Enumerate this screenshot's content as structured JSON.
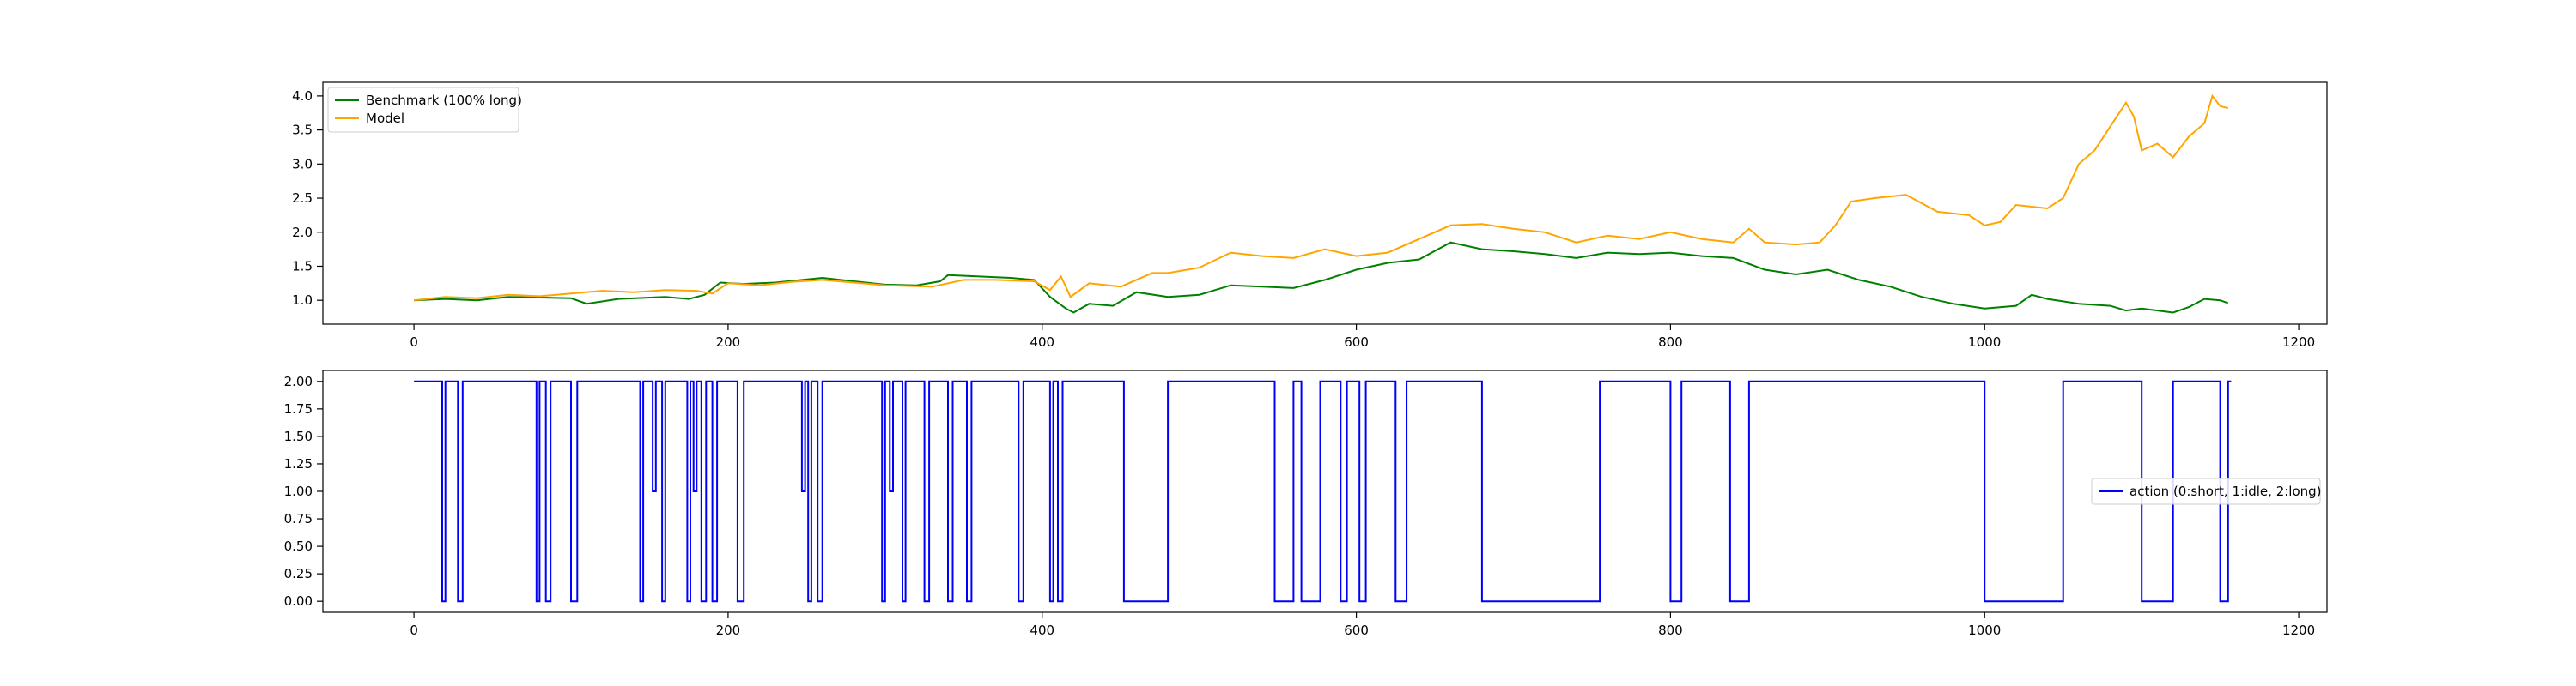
{
  "chart_data": [
    {
      "type": "line",
      "title": "",
      "xlabel": "",
      "ylabel": "",
      "xlim": [
        -58,
        1218
      ],
      "ylim": [
        0.65,
        4.2
      ],
      "xticks": [
        0,
        200,
        400,
        600,
        800,
        1000,
        1200
      ],
      "yticks": [
        1.0,
        1.5,
        2.0,
        2.5,
        3.0,
        3.5,
        4.0
      ],
      "ytick_format": 1,
      "grid": false,
      "legend_position": "upper-left",
      "series": [
        {
          "name": "Benchmark (100% long)",
          "color": "#008000",
          "points": [
            [
              0,
              1.0
            ],
            [
              20,
              1.02
            ],
            [
              40,
              1.0
            ],
            [
              60,
              1.05
            ],
            [
              80,
              1.04
            ],
            [
              100,
              1.03
            ],
            [
              110,
              0.95
            ],
            [
              130,
              1.02
            ],
            [
              160,
              1.05
            ],
            [
              175,
              1.02
            ],
            [
              185,
              1.08
            ],
            [
              195,
              1.26
            ],
            [
              210,
              1.24
            ],
            [
              230,
              1.26
            ],
            [
              260,
              1.33
            ],
            [
              280,
              1.28
            ],
            [
              300,
              1.23
            ],
            [
              320,
              1.22
            ],
            [
              335,
              1.28
            ],
            [
              340,
              1.37
            ],
            [
              360,
              1.35
            ],
            [
              380,
              1.33
            ],
            [
              395,
              1.3
            ],
            [
              405,
              1.05
            ],
            [
              415,
              0.88
            ],
            [
              420,
              0.82
            ],
            [
              430,
              0.95
            ],
            [
              445,
              0.92
            ],
            [
              460,
              1.12
            ],
            [
              480,
              1.05
            ],
            [
              500,
              1.08
            ],
            [
              520,
              1.22
            ],
            [
              540,
              1.2
            ],
            [
              560,
              1.18
            ],
            [
              580,
              1.3
            ],
            [
              600,
              1.45
            ],
            [
              620,
              1.55
            ],
            [
              640,
              1.6
            ],
            [
              660,
              1.85
            ],
            [
              680,
              1.75
            ],
            [
              700,
              1.72
            ],
            [
              720,
              1.68
            ],
            [
              740,
              1.62
            ],
            [
              760,
              1.7
            ],
            [
              780,
              1.68
            ],
            [
              800,
              1.7
            ],
            [
              820,
              1.65
            ],
            [
              840,
              1.62
            ],
            [
              860,
              1.45
            ],
            [
              880,
              1.38
            ],
            [
              900,
              1.45
            ],
            [
              920,
              1.3
            ],
            [
              940,
              1.2
            ],
            [
              960,
              1.05
            ],
            [
              980,
              0.95
            ],
            [
              1000,
              0.88
            ],
            [
              1020,
              0.92
            ],
            [
              1030,
              1.08
            ],
            [
              1040,
              1.02
            ],
            [
              1060,
              0.95
            ],
            [
              1080,
              0.92
            ],
            [
              1090,
              0.85
            ],
            [
              1100,
              0.88
            ],
            [
              1120,
              0.82
            ],
            [
              1130,
              0.9
            ],
            [
              1140,
              1.02
            ],
            [
              1150,
              1.0
            ],
            [
              1155,
              0.96
            ]
          ]
        },
        {
          "name": "Model",
          "color": "#ffa500",
          "points": [
            [
              0,
              1.0
            ],
            [
              20,
              1.05
            ],
            [
              40,
              1.03
            ],
            [
              60,
              1.08
            ],
            [
              80,
              1.06
            ],
            [
              100,
              1.1
            ],
            [
              120,
              1.14
            ],
            [
              140,
              1.12
            ],
            [
              160,
              1.15
            ],
            [
              180,
              1.14
            ],
            [
              190,
              1.1
            ],
            [
              200,
              1.25
            ],
            [
              220,
              1.22
            ],
            [
              240,
              1.27
            ],
            [
              260,
              1.3
            ],
            [
              280,
              1.26
            ],
            [
              300,
              1.22
            ],
            [
              330,
              1.2
            ],
            [
              350,
              1.3
            ],
            [
              370,
              1.3
            ],
            [
              395,
              1.28
            ],
            [
              405,
              1.15
            ],
            [
              412,
              1.35
            ],
            [
              418,
              1.05
            ],
            [
              430,
              1.25
            ],
            [
              450,
              1.2
            ],
            [
              470,
              1.4
            ],
            [
              480,
              1.4
            ],
            [
              500,
              1.48
            ],
            [
              520,
              1.7
            ],
            [
              540,
              1.65
            ],
            [
              560,
              1.62
            ],
            [
              580,
              1.75
            ],
            [
              600,
              1.65
            ],
            [
              620,
              1.7
            ],
            [
              640,
              1.9
            ],
            [
              660,
              2.1
            ],
            [
              680,
              2.12
            ],
            [
              700,
              2.05
            ],
            [
              720,
              2.0
            ],
            [
              740,
              1.85
            ],
            [
              760,
              1.95
            ],
            [
              780,
              1.9
            ],
            [
              800,
              2.0
            ],
            [
              820,
              1.9
            ],
            [
              840,
              1.85
            ],
            [
              850,
              2.05
            ],
            [
              860,
              1.85
            ],
            [
              880,
              1.82
            ],
            [
              895,
              1.85
            ],
            [
              905,
              2.1
            ],
            [
              915,
              2.45
            ],
            [
              930,
              2.5
            ],
            [
              950,
              2.55
            ],
            [
              970,
              2.3
            ],
            [
              990,
              2.25
            ],
            [
              1000,
              2.1
            ],
            [
              1010,
              2.15
            ],
            [
              1020,
              2.4
            ],
            [
              1040,
              2.35
            ],
            [
              1050,
              2.5
            ],
            [
              1060,
              3.0
            ],
            [
              1070,
              3.2
            ],
            [
              1080,
              3.55
            ],
            [
              1090,
              3.9
            ],
            [
              1095,
              3.7
            ],
            [
              1100,
              3.2
            ],
            [
              1110,
              3.3
            ],
            [
              1120,
              3.1
            ],
            [
              1130,
              3.4
            ],
            [
              1140,
              3.6
            ],
            [
              1145,
              4.0
            ],
            [
              1150,
              3.85
            ],
            [
              1155,
              3.82
            ]
          ]
        }
      ]
    },
    {
      "type": "line",
      "title": "",
      "xlabel": "",
      "ylabel": "",
      "xlim": [
        -58,
        1218
      ],
      "ylim": [
        -0.1,
        2.1
      ],
      "xticks": [
        0,
        200,
        400,
        600,
        800,
        1000,
        1200
      ],
      "yticks": [
        0.0,
        0.25,
        0.5,
        0.75,
        1.0,
        1.25,
        1.5,
        1.75,
        2.0
      ],
      "ytick_format": 2,
      "grid": false,
      "legend_position": "center-right",
      "series": [
        {
          "name": "action (0:short, 1:idle, 2:long)",
          "color": "#0000ff",
          "step_segments": [
            [
              0,
              18,
              2
            ],
            [
              18,
              20,
              0
            ],
            [
              20,
              28,
              2
            ],
            [
              28,
              31,
              0
            ],
            [
              31,
              78,
              2
            ],
            [
              78,
              80,
              0
            ],
            [
              80,
              84,
              2
            ],
            [
              84,
              87,
              0
            ],
            [
              87,
              100,
              2
            ],
            [
              100,
              104,
              0
            ],
            [
              104,
              144,
              2
            ],
            [
              144,
              146,
              0
            ],
            [
              146,
              152,
              2
            ],
            [
              152,
              154,
              1
            ],
            [
              154,
              158,
              2
            ],
            [
              158,
              160,
              0
            ],
            [
              160,
              174,
              2
            ],
            [
              174,
              176,
              0
            ],
            [
              176,
              178,
              2
            ],
            [
              178,
              180,
              1
            ],
            [
              180,
              183,
              2
            ],
            [
              183,
              186,
              0
            ],
            [
              186,
              190,
              2
            ],
            [
              190,
              193,
              0
            ],
            [
              193,
              206,
              2
            ],
            [
              206,
              210,
              0
            ],
            [
              210,
              247,
              2
            ],
            [
              247,
              249,
              1
            ],
            [
              249,
              251,
              2
            ],
            [
              251,
              253,
              0
            ],
            [
              253,
              257,
              2
            ],
            [
              257,
              260,
              0
            ],
            [
              260,
              298,
              2
            ],
            [
              298,
              300,
              0
            ],
            [
              300,
              303,
              2
            ],
            [
              303,
              305,
              1
            ],
            [
              305,
              311,
              2
            ],
            [
              311,
              313,
              0
            ],
            [
              313,
              325,
              2
            ],
            [
              325,
              328,
              0
            ],
            [
              328,
              340,
              2
            ],
            [
              340,
              343,
              0
            ],
            [
              343,
              352,
              2
            ],
            [
              352,
              355,
              0
            ],
            [
              355,
              385,
              2
            ],
            [
              385,
              388,
              0
            ],
            [
              388,
              405,
              2
            ],
            [
              405,
              407,
              0
            ],
            [
              407,
              410,
              2
            ],
            [
              410,
              413,
              0
            ],
            [
              413,
              452,
              2
            ],
            [
              452,
              480,
              0
            ],
            [
              480,
              548,
              2
            ],
            [
              548,
              560,
              0
            ],
            [
              560,
              565,
              2
            ],
            [
              565,
              577,
              0
            ],
            [
              577,
              590,
              2
            ],
            [
              590,
              594,
              0
            ],
            [
              594,
              602,
              2
            ],
            [
              602,
              606,
              0
            ],
            [
              606,
              625,
              2
            ],
            [
              625,
              632,
              0
            ],
            [
              632,
              680,
              2
            ],
            [
              680,
              755,
              0
            ],
            [
              755,
              800,
              2
            ],
            [
              800,
              807,
              0
            ],
            [
              807,
              838,
              2
            ],
            [
              838,
              850,
              0
            ],
            [
              850,
              1000,
              2
            ],
            [
              1000,
              1050,
              0
            ],
            [
              1050,
              1100,
              2
            ],
            [
              1100,
              1120,
              0
            ],
            [
              1120,
              1150,
              2
            ],
            [
              1150,
              1155,
              0
            ],
            [
              1155,
              1157,
              2
            ]
          ]
        }
      ]
    }
  ]
}
